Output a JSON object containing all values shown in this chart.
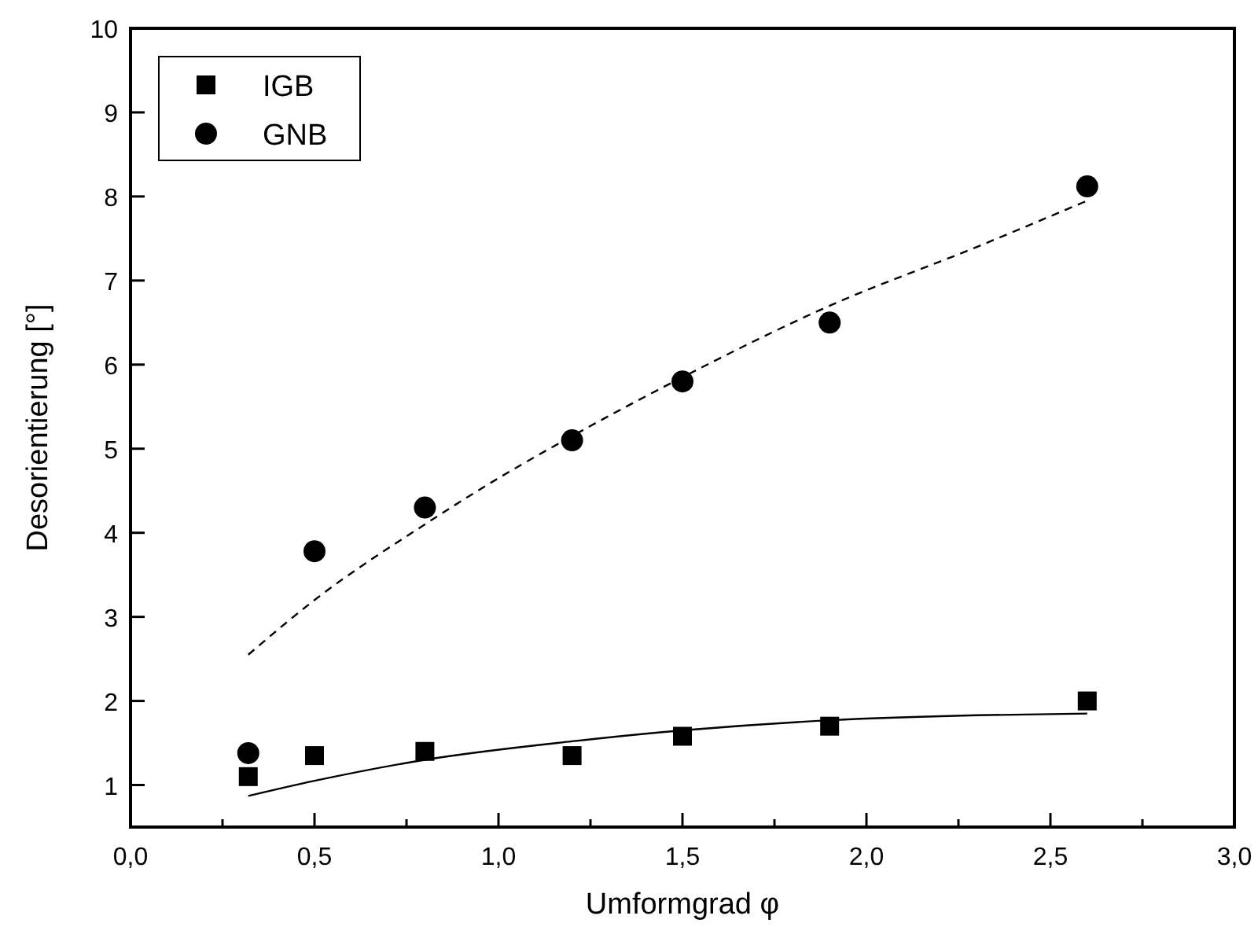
{
  "chart_data": {
    "type": "scatter",
    "xlabel": "Umformgrad φ",
    "ylabel": "Desorientierung [°]",
    "xlim": [
      0,
      3
    ],
    "ylim": [
      0.5,
      10
    ],
    "xticks": [
      {
        "value": 0,
        "label": "0,0"
      },
      {
        "value": 0.25,
        "label": null
      },
      {
        "value": 0.5,
        "label": "0,5"
      },
      {
        "value": 0.75,
        "label": null
      },
      {
        "value": 1,
        "label": "1,0"
      },
      {
        "value": 1.25,
        "label": null
      },
      {
        "value": 1.5,
        "label": "1,5"
      },
      {
        "value": 1.75,
        "label": null
      },
      {
        "value": 2,
        "label": "2,0"
      },
      {
        "value": 2.25,
        "label": null
      },
      {
        "value": 2.5,
        "label": "2,5"
      },
      {
        "value": 2.75,
        "label": null
      },
      {
        "value": 3,
        "label": "3,0"
      }
    ],
    "yticks": [
      1,
      2,
      3,
      4,
      5,
      6,
      7,
      8,
      9,
      10
    ],
    "grid": false,
    "legend": "top left",
    "series": [
      {
        "name": "IGB",
        "color": "#000000",
        "marker": "square",
        "x": [
          0.32,
          0.5,
          0.8,
          1.2,
          1.5,
          1.9,
          2.6
        ],
        "values": [
          1.1,
          1.35,
          1.4,
          1.35,
          1.58,
          1.7,
          2.0
        ]
      },
      {
        "name": "GNB",
        "color": "#000000",
        "marker": "circle",
        "x": [
          0.32,
          0.5,
          0.8,
          1.2,
          1.5,
          1.9,
          2.6
        ],
        "values": [
          1.38,
          3.78,
          4.3,
          5.1,
          5.8,
          6.5,
          8.12
        ]
      },
      {
        "type": "line",
        "color": "#000000",
        "line_style": "dashed",
        "marker": "none",
        "x": [
          0.32,
          0.5,
          0.8,
          1.0,
          1.2,
          1.5,
          1.9,
          2.3,
          2.6
        ],
        "values": [
          2.55,
          3.2,
          4.1,
          4.65,
          5.15,
          5.85,
          6.7,
          7.4,
          7.95
        ]
      },
      {
        "type": "line",
        "color": "#000000",
        "line_style": "solid",
        "marker": "none",
        "x": [
          0.32,
          0.5,
          0.8,
          1.2,
          1.5,
          1.9,
          2.3,
          2.6
        ],
        "values": [
          0.87,
          1.05,
          1.3,
          1.52,
          1.65,
          1.77,
          1.83,
          1.85
        ]
      }
    ]
  }
}
